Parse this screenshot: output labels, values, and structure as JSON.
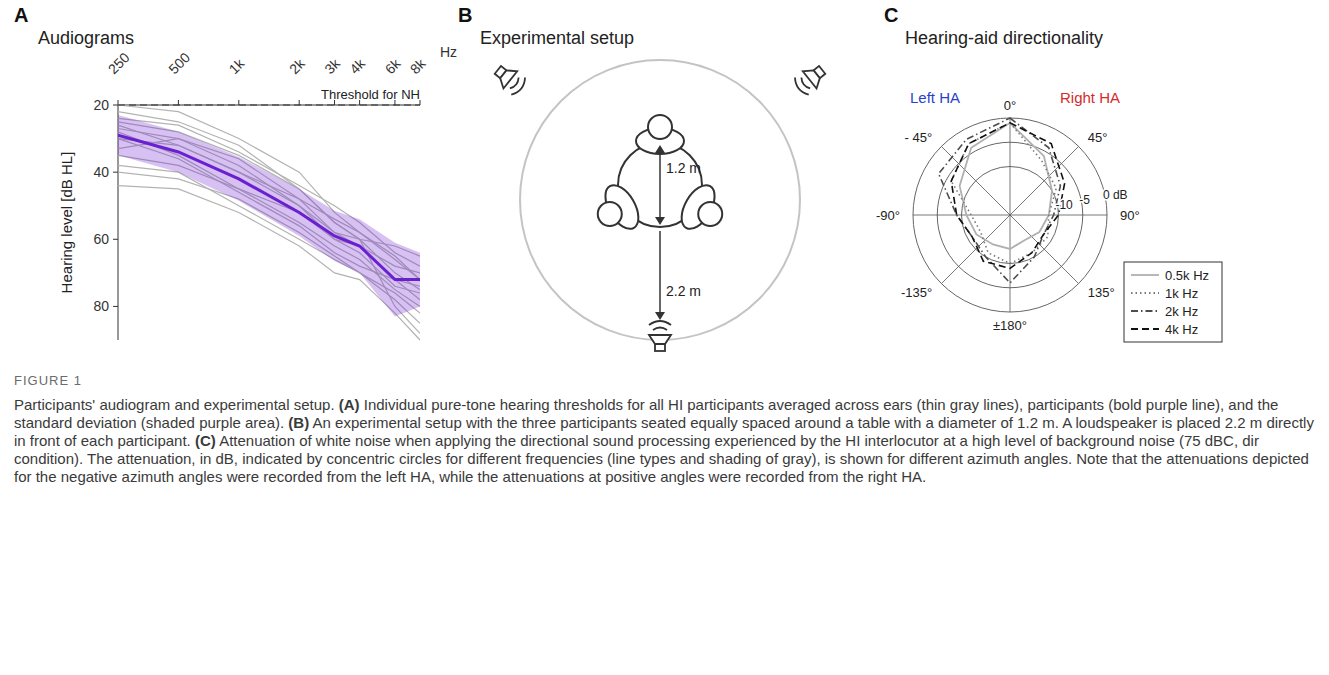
{
  "chart_data": [
    {
      "panel": "A",
      "type": "line",
      "title": "Audiograms",
      "xlabel": "Hz",
      "ylabel": "Hearing level [dB HL]",
      "log": "x",
      "grid": false,
      "x": [
        250,
        500,
        1000,
        2000,
        3000,
        4000,
        6000,
        8000
      ],
      "xlim": [
        250,
        8000
      ],
      "xticks": [
        250,
        500,
        {
          "value": 1000,
          "label": "1k"
        },
        {
          "value": 2000,
          "label": "2k"
        },
        {
          "value": 3000,
          "label": "3k"
        },
        {
          "value": 4000,
          "label": "4k"
        },
        {
          "value": 6000,
          "label": "6k"
        },
        {
          "value": 8000,
          "label": "8k"
        }
      ],
      "ylim": [
        90,
        20
      ],
      "yticks": [
        20,
        40,
        60,
        80
      ],
      "annotations": [
        {
          "text": "Threshold for NH",
          "y": 20,
          "line_style": "dashed"
        }
      ],
      "series": [
        {
          "color": "#b3b3b3",
          "values": [
            20,
            22,
            30,
            40,
            52,
            58,
            65,
            72
          ]
        },
        {
          "color": "#b3b3b3",
          "values": [
            25,
            28,
            35,
            45,
            55,
            60,
            70,
            75
          ]
        },
        {
          "color": "#b3b3b3",
          "values": [
            30,
            32,
            40,
            50,
            58,
            62,
            72,
            78
          ]
        },
        {
          "color": "#b3b3b3",
          "values": [
            35,
            38,
            45,
            55,
            62,
            66,
            75,
            80
          ]
        },
        {
          "color": "#b3b3b3",
          "values": [
            40,
            42,
            48,
            58,
            65,
            70,
            78,
            85
          ]
        },
        {
          "color": "#b3b3b3",
          "values": [
            28,
            35,
            45,
            52,
            60,
            62,
            68,
            70
          ]
        },
        {
          "color": "#b3b3b3",
          "values": [
            22,
            25,
            32,
            45,
            55,
            60,
            62,
            65
          ]
        },
        {
          "color": "#b3b3b3",
          "values": [
            33,
            30,
            38,
            50,
            60,
            64,
            74,
            76
          ]
        },
        {
          "color": "#b3b3b3",
          "values": [
            27,
            30,
            36,
            48,
            58,
            60,
            80,
            88
          ]
        },
        {
          "color": "#b3b3b3",
          "values": [
            38,
            40,
            50,
            60,
            66,
            70,
            76,
            82
          ]
        },
        {
          "color": "#b3b3b3",
          "values": [
            24,
            26,
            34,
            44,
            50,
            55,
            64,
            68
          ]
        },
        {
          "color": "#b3b3b3",
          "values": [
            30,
            36,
            46,
            56,
            64,
            68,
            72,
            74
          ]
        },
        {
          "color": "#b3b3b3",
          "values": [
            44,
            45,
            52,
            62,
            70,
            72,
            82,
            90
          ]
        },
        {
          "color": "#b3b3b3",
          "values": [
            26,
            32,
            40,
            48,
            54,
            58,
            66,
            72
          ]
        },
        {
          "color": "#6a1fd1",
          "values": [
            29,
            34,
            42,
            52,
            59,
            62,
            72,
            72
          ],
          "sd": [
            6,
            6,
            6.5,
            7,
            7.5,
            8,
            11,
            8
          ]
        }
      ]
    },
    {
      "panel": "C",
      "type": "polar",
      "title": "Hearing-aid directionality",
      "annotations": [
        {
          "text": "Left HA"
        },
        {
          "text": "Right HA"
        }
      ],
      "x": [
        0,
        30,
        60,
        90,
        120,
        150,
        180,
        -150,
        -120,
        -90,
        -60,
        -30
      ],
      "xticks": [
        {
          "value": 0,
          "label": "0°"
        },
        {
          "value": 45,
          "label": "45°"
        },
        {
          "value": 90,
          "label": "90°"
        },
        {
          "value": 135,
          "label": "135°"
        },
        {
          "value": 180,
          "label": "±180°"
        },
        {
          "value": -135,
          "label": "-135°"
        },
        {
          "value": -90,
          "label": "-90°"
        },
        {
          "value": -45,
          "label": "- 45°"
        }
      ],
      "ylim": [
        -20,
        0
      ],
      "yticks": [
        {
          "value": 0,
          "label": "0 dB"
        },
        -5,
        -10
      ],
      "grid": true,
      "legend": "lower right",
      "series": [
        {
          "name": "0.5k Hz",
          "color": "#b0b0b0",
          "line_style": "solid",
          "values": [
            -1,
            -6,
            -10,
            -12,
            -13,
            -14,
            -13,
            -13,
            -12,
            -11,
            -8,
            -4
          ]
        },
        {
          "name": "1k Hz",
          "color": "#7a7a7a",
          "line_style": "dotted",
          "values": [
            -1,
            -7,
            -9,
            -12,
            -11,
            -11,
            -10,
            -11,
            -13,
            -12,
            -6,
            -3
          ]
        },
        {
          "name": "2k Hz",
          "color": "#4d4d4d",
          "line_style": "dashdot",
          "values": [
            0,
            -4,
            -8,
            -11,
            -12,
            -10,
            -6,
            -10,
            -11,
            -9,
            -3,
            -2
          ]
        },
        {
          "name": "4k Hz",
          "color": "#111111",
          "line_style": "dashed",
          "values": [
            -1,
            -3,
            -7,
            -10,
            -12,
            -11,
            -9,
            -9,
            -11,
            -9,
            -6,
            -3
          ]
        }
      ]
    }
  ],
  "diagram": {
    "panel": "B",
    "title": "Experimental setup",
    "labels": {
      "table_diameter": "1.2 m",
      "speaker_distance": "2.2 m"
    }
  },
  "caption": {
    "label": "FIGURE 1",
    "title": "Participants' audiogram and experimental setup.",
    "parts": [
      {
        "tag": "(A)",
        "text": "Individual pure-tone hearing thresholds for all HI participants averaged across ears (thin gray lines), participants (bold purple line), and the standard deviation (shaded purple area)."
      },
      {
        "tag": "(B)",
        "text": "An experimental setup with the three participants seated equally spaced around a table with a diameter of 1.2 m. A loudspeaker is placed 2.2 m directly in front of each participant."
      },
      {
        "tag": "(C)",
        "text": "Attenuation of white noise when applying the directional sound processing experienced by the HI interlocutor at a high level of background noise (75 dBC, dir condition). The attenuation, in dB, indicated by concentric circles for different frequencies (line types and shading of gray), is shown for different azimuth angles. Note that the attenuations depicted for the negative azimuth angles were recorded from the left HA, while the attenuations at positive angles were recorded from the right HA."
      }
    ]
  }
}
